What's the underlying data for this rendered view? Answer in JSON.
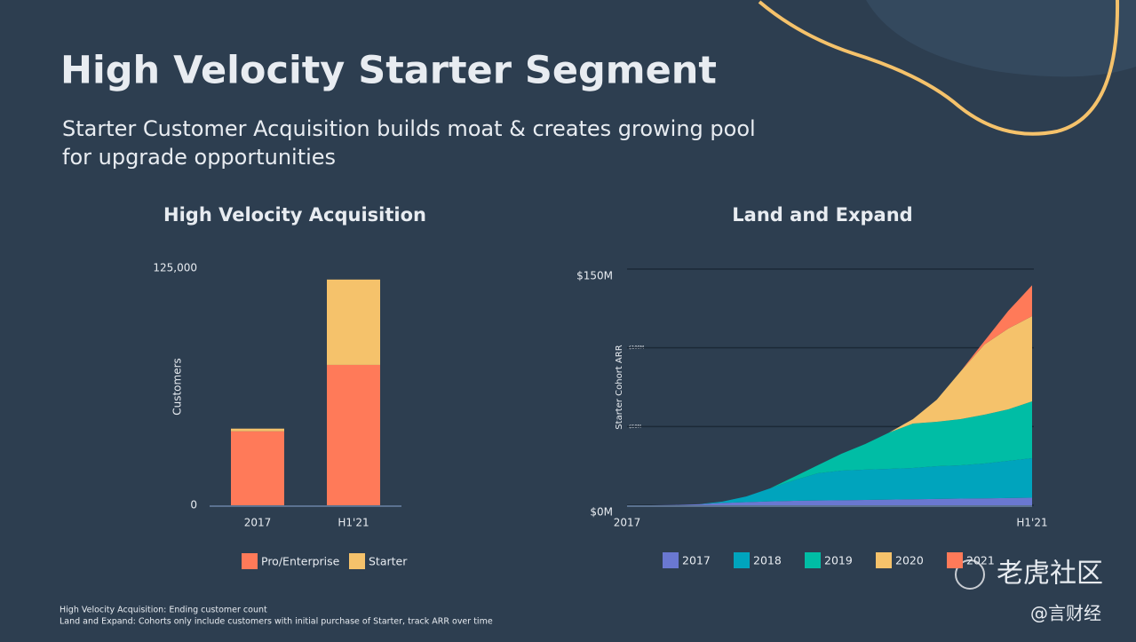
{
  "slide": {
    "title": "High Velocity Starter Segment",
    "subtitle": [
      "Starter Customer Acquisition builds moat & creates growing pool",
      "for upgrade opportunities"
    ],
    "footnotes": [
      "High Velocity Acquisition: Ending customer count",
      "Land and Expand: Cohorts only include customers with initial purchase of Starter, track ARR over time"
    ],
    "watermark": "老虎社区",
    "source": "@言财经"
  },
  "chart_data": [
    {
      "type": "bar",
      "stacked": true,
      "title": "High Velocity Acquisition",
      "y_label": "Customers",
      "categories": [
        "2017",
        "H1'21"
      ],
      "series": [
        {
          "name": "Pro/Enterprise",
          "color": "#ff7a59",
          "values": [
            39000,
            74000
          ]
        },
        {
          "name": "Starter",
          "color": "#f5c26b",
          "values": [
            1400,
            45000
          ]
        }
      ],
      "ylim": [
        0,
        125000
      ],
      "yticks": [
        0,
        {
          "value": 125000,
          "label": "125,000"
        }
      ]
    },
    {
      "type": "area",
      "stacked": true,
      "title": "Land and Expand",
      "y_label": "Starter Cohort ARR",
      "categories": [
        "2017",
        null,
        null,
        null,
        null,
        null,
        null,
        null,
        null,
        null,
        null,
        null,
        null,
        null,
        null,
        null,
        null,
        "H1'21"
      ],
      "series": [
        {
          "name": "2017",
          "color": "#6a78d1",
          "values": [
            0,
            0,
            0.2,
            0.6,
            1.5,
            2,
            2.5,
            2.8,
            3,
            3.2,
            3.4,
            3.6,
            3.8,
            4,
            4.2,
            4.4,
            4.6,
            4.8
          ]
        },
        {
          "name": "2018",
          "color": "#00a4bd",
          "values": [
            0,
            0,
            0,
            0,
            0.8,
            3.6,
            8.2,
            13,
            17.3,
            18.8,
            19.2,
            19.5,
            19.9,
            20.8,
            21.2,
            22.1,
            23.6,
            25.1
          ]
        },
        {
          "name": "2019",
          "color": "#00bda5",
          "values": [
            0,
            0,
            0,
            0,
            0,
            0,
            0,
            2.2,
            5.1,
            10.7,
            16.3,
            23.1,
            28.2,
            28.2,
            29.3,
            31,
            32.7,
            36.1
          ]
        },
        {
          "name": "2020",
          "color": "#f5c26b",
          "values": [
            0,
            0,
            0,
            0,
            0,
            0,
            0,
            0,
            0,
            0,
            0,
            0,
            2.8,
            14,
            30.3,
            44.6,
            51.3,
            54.1
          ]
        },
        {
          "name": "2021",
          "color": "#ff7a59",
          "values": [
            0,
            0,
            0,
            0,
            0,
            0,
            0,
            0,
            0,
            0,
            0,
            0,
            0,
            0,
            0,
            2.2,
            11.2,
            19.6
          ]
        }
      ],
      "ylim": [
        0,
        150
      ],
      "yticks": [
        {
          "value": 0,
          "label": "$0M"
        },
        {
          "value": 50,
          "label": "$50M"
        },
        {
          "value": 100,
          "label": "$100M"
        },
        {
          "value": 150,
          "label": "$150M"
        }
      ],
      "grid": true
    }
  ]
}
